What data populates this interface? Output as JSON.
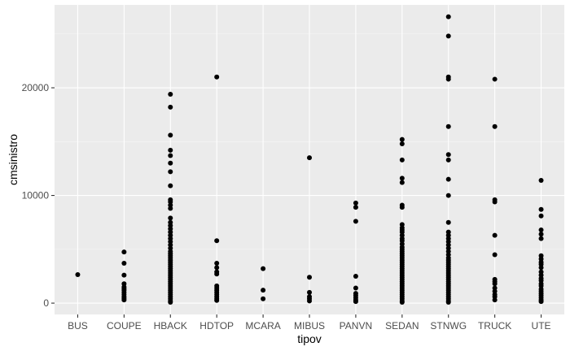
{
  "chart_data": {
    "type": "scatter",
    "title": "",
    "xlabel": "tipov",
    "ylabel": "cmsinistro",
    "categories": [
      "BUS",
      "COUPE",
      "HBACK",
      "HDTOP",
      "MCARA",
      "MIBUS",
      "PANVN",
      "SEDAN",
      "STNWG",
      "TRUCK",
      "UTE"
    ],
    "y_ticks": [
      0,
      10000,
      20000
    ],
    "y_tick_labels": [
      "0",
      "10000",
      "20000"
    ],
    "ylim": [
      -1050,
      27700
    ],
    "grid": true,
    "colors": {
      "panel": "#ebebeb",
      "grid_major": "#ffffff",
      "grid_minor": "#f5f5f5",
      "point": "#000000",
      "tick": "#333333"
    },
    "points": {
      "BUS": [
        2650
      ],
      "COUPE": [
        4750,
        3700,
        2600,
        1800,
        1500,
        1350,
        1200,
        1000,
        800,
        600,
        450,
        300
      ],
      "HBACK": [
        19400,
        18200,
        15600,
        14200,
        13700,
        13000,
        12200,
        10900,
        9600,
        9400,
        9100,
        8800,
        7900,
        7500,
        7200,
        6900,
        6600,
        6300,
        6000,
        5700,
        5400,
        5100,
        4800,
        4600,
        4400,
        4200,
        4000,
        3800,
        3600,
        3400,
        3200,
        3000,
        2800,
        2600,
        2400,
        2200,
        2000,
        1800,
        1600,
        1400,
        1200,
        1000,
        800,
        600,
        400,
        200,
        80
      ],
      "HDTOP": [
        21000,
        5800,
        3700,
        3300,
        2900,
        2700,
        1600,
        1400,
        1200,
        1000,
        800,
        600,
        400,
        250
      ],
      "MCARA": [
        3200,
        1200,
        400
      ],
      "MIBUS": [
        13500,
        2400,
        1000,
        600,
        400,
        200
      ],
      "PANVN": [
        9300,
        8900,
        7600,
        2500,
        1400,
        900,
        700,
        500,
        300,
        150
      ],
      "SEDAN": [
        15200,
        14800,
        13300,
        11600,
        11200,
        9100,
        8900,
        7300,
        7000,
        6800,
        6600,
        6300,
        6000,
        5800,
        5500,
        5200,
        5000,
        4800,
        4600,
        4400,
        4200,
        4000,
        3800,
        3600,
        3400,
        3200,
        3000,
        2800,
        2600,
        2400,
        2200,
        2000,
        1800,
        1600,
        1400,
        1200,
        1000,
        800,
        600,
        400,
        200,
        80
      ],
      "STNWG": [
        26600,
        24800,
        21000,
        20800,
        16400,
        13800,
        13300,
        11500,
        10000,
        7500,
        6600,
        6300,
        6000,
        5700,
        5400,
        5100,
        4800,
        4500,
        4200,
        4000,
        3800,
        3600,
        3400,
        3200,
        3000,
        2800,
        2600,
        2400,
        2200,
        2000,
        1800,
        1600,
        1400,
        1200,
        1000,
        800,
        600,
        400,
        200,
        80
      ],
      "TRUCK": [
        20800,
        16400,
        9600,
        9400,
        6300,
        4500,
        2200,
        2000,
        1800,
        1400,
        1100,
        800,
        600,
        300
      ],
      "UTE": [
        11400,
        8700,
        8100,
        6800,
        6400,
        6000,
        4400,
        4100,
        3800,
        3600,
        3300,
        2900,
        2600,
        2300,
        2100,
        1800,
        1600,
        1300,
        1100,
        900,
        700,
        500,
        300,
        150
      ]
    }
  }
}
